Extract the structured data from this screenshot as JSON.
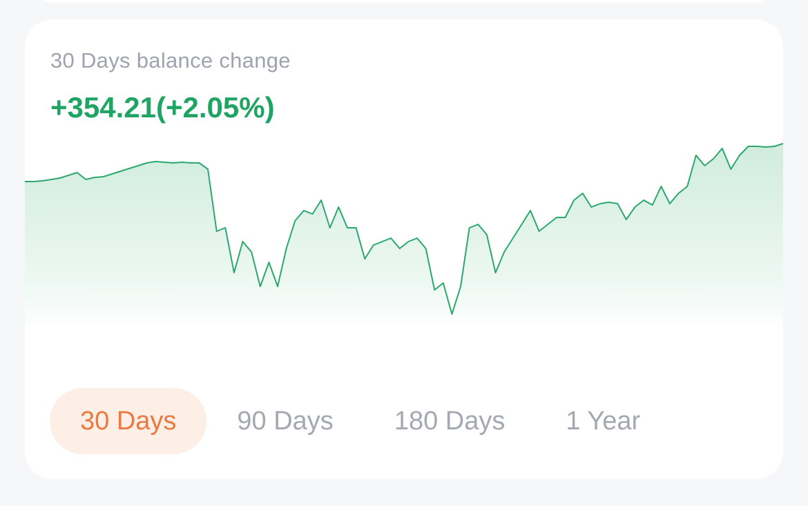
{
  "header": {
    "subtitle": "30 Days balance change",
    "change": "+354.21(+2.05%)"
  },
  "chart_data": {
    "type": "line",
    "color": "#2aa86b",
    "values": [
      237,
      237,
      238,
      240,
      242,
      246,
      250,
      240,
      243,
      244,
      248,
      252,
      256,
      260,
      264,
      266,
      265,
      264,
      265,
      264,
      264,
      255,
      165,
      170,
      105,
      150,
      135,
      85,
      120,
      85,
      140,
      180,
      195,
      190,
      210,
      170,
      200,
      170,
      170,
      125,
      145,
      150,
      155,
      140,
      150,
      155,
      140,
      80,
      90,
      45,
      85,
      170,
      175,
      160,
      105,
      135,
      155,
      175,
      195,
      165,
      175,
      185,
      185,
      210,
      220,
      200,
      205,
      207,
      205,
      182,
      200,
      210,
      203,
      230,
      205,
      220,
      230,
      275,
      260,
      270,
      285,
      255,
      275,
      288,
      288,
      287,
      288,
      292
    ]
  },
  "tabs": {
    "items": [
      "30 Days",
      "90 Days",
      "180 Days",
      "1 Year"
    ],
    "active": 0
  }
}
